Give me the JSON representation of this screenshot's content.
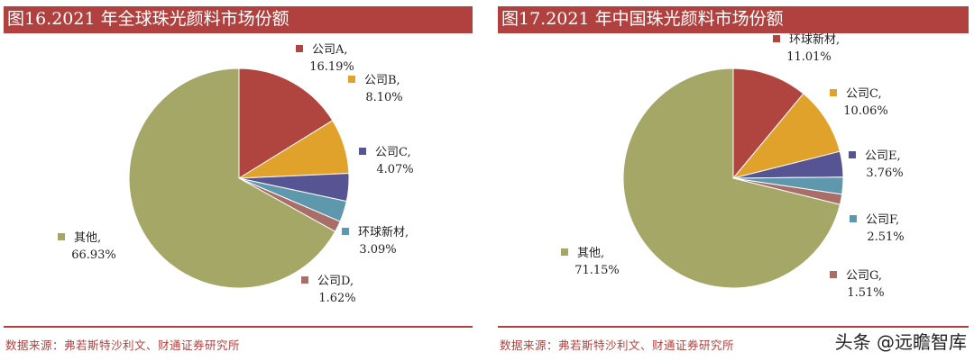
{
  "watermark": "头条 @远瞻智库",
  "chart_data": [
    {
      "type": "pie",
      "title": "图16.2021 年全球珠光颜料市场份额",
      "source": "数据来源：弗若斯特沙利文、财通证券研究所",
      "slices": [
        {
          "name": "公司A,",
          "value": 16.19,
          "label": "16.19%",
          "color": "#b04540"
        },
        {
          "name": "公司B,",
          "value": 8.1,
          "label": "8.10%",
          "color": "#e0a22b"
        },
        {
          "name": "公司C,",
          "value": 4.07,
          "label": "4.07%",
          "color": "#575494"
        },
        {
          "name": "环球新材,",
          "value": 3.09,
          "label": "3.09%",
          "color": "#5d98ad"
        },
        {
          "name": "公司D,",
          "value": 1.62,
          "label": "1.62%",
          "color": "#a86e67"
        },
        {
          "name": "其他,",
          "value": 66.93,
          "label": "66.93%",
          "color": "#a4a766"
        }
      ]
    },
    {
      "type": "pie",
      "title": "图17.2021 年中国珠光颜料市场份额",
      "source": "数据来源：弗若斯特沙利文、财通证券研究所",
      "slices": [
        {
          "name": "环球新材,",
          "value": 11.01,
          "label": "11.01%",
          "color": "#b04540"
        },
        {
          "name": "公司C,",
          "value": 10.06,
          "label": "10.06%",
          "color": "#e0a22b"
        },
        {
          "name": "公司E,",
          "value": 3.76,
          "label": "3.76%",
          "color": "#575494"
        },
        {
          "name": "公司F,",
          "value": 2.51,
          "label": "2.51%",
          "color": "#5d98ad"
        },
        {
          "name": "公司G,",
          "value": 1.51,
          "label": "1.51%",
          "color": "#a86e67"
        },
        {
          "name": "其他,",
          "value": 71.15,
          "label": "71.15%",
          "color": "#a4a766"
        }
      ]
    }
  ]
}
